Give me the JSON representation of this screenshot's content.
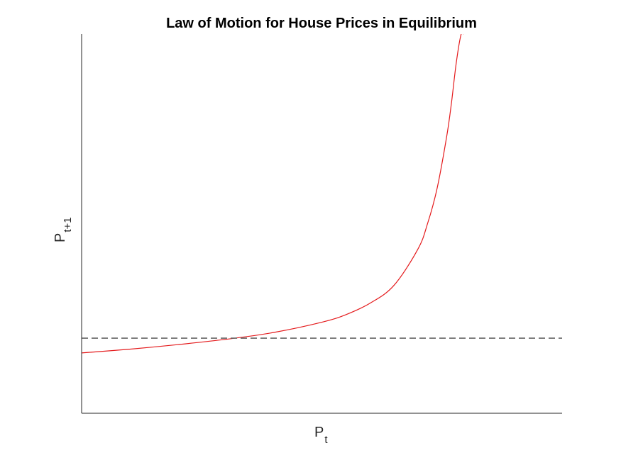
{
  "chart_data": {
    "type": "line",
    "title": "Law of Motion for House Prices in Equilibrium",
    "xlabel": {
      "main": "P",
      "subscript": "t"
    },
    "ylabel": {
      "main": "P",
      "subscript": "t+1"
    },
    "xlim": [
      0,
      1
    ],
    "ylim": [
      0,
      1
    ],
    "xticks": [],
    "yticks": [],
    "grid": false,
    "legend": "none",
    "series": [
      {
        "style": "solid",
        "color": "#e41a1c",
        "x": [
          0.0,
          0.1,
          0.2,
          0.3,
          0.4,
          0.5,
          0.55,
          0.6,
          0.65,
          0.7,
          0.72,
          0.74,
          0.76,
          0.77,
          0.78,
          0.79,
          0.795
        ],
        "y": [
          0.159,
          0.169,
          0.181,
          0.195,
          0.213,
          0.24,
          0.26,
          0.29,
          0.337,
          0.433,
          0.5,
          0.594,
          0.731,
          0.821,
          0.927,
          1.0,
          1.0
        ]
      },
      {
        "style": "dashed",
        "color": "#666666",
        "x": [
          0.0,
          1.0
        ],
        "y": [
          0.198,
          0.198
        ]
      }
    ]
  }
}
